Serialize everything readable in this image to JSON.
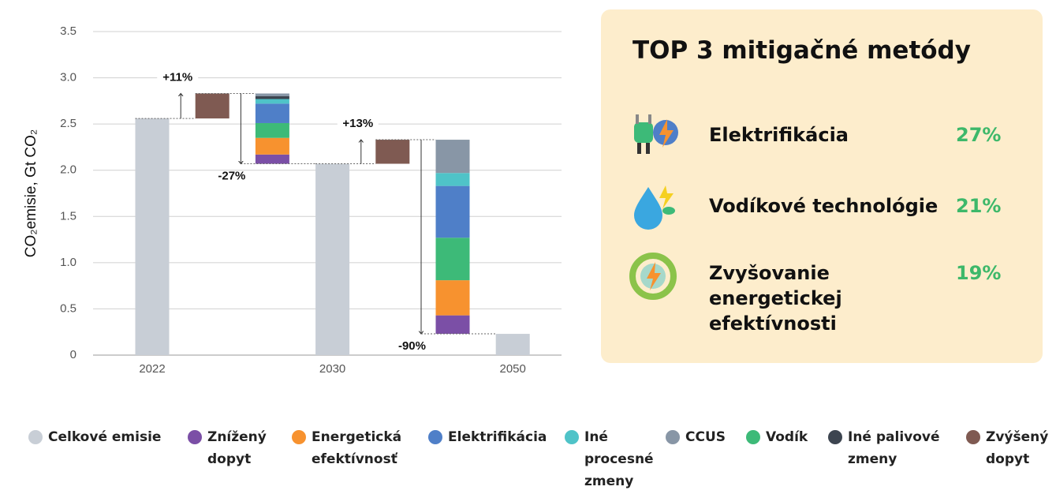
{
  "chart_data": {
    "type": "waterfall",
    "ylabel": "CO₂emisie, Gt CO₂",
    "categories": [
      "2022",
      null,
      null,
      "2030",
      null,
      null,
      "2050"
    ],
    "series": [
      {
        "name": "Celkové emisie",
        "color": "#c8ced6",
        "values": [
          2.56,
          null,
          null,
          2.07,
          null,
          null,
          0.23
        ]
      },
      {
        "name": "Znížený dopyt",
        "color": "#7b4fa6",
        "values": [
          null,
          null,
          0.1,
          null,
          null,
          0.2,
          null
        ]
      },
      {
        "name": "Energetická efektívnosť",
        "color": "#f7922f",
        "values": [
          null,
          null,
          0.18,
          null,
          null,
          0.38,
          null
        ]
      },
      {
        "name": "Elektrifikácia",
        "color": "#4f7fc8",
        "values": [
          null,
          null,
          0.21,
          null,
          null,
          0.56,
          null
        ]
      },
      {
        "name": "Iné procesné zmeny",
        "color": "#4fc3c8",
        "values": [
          null,
          null,
          0.05,
          null,
          null,
          0.14,
          null
        ]
      },
      {
        "name": "CCUS",
        "color": "#8896a6",
        "values": [
          null,
          null,
          0.03,
          null,
          null,
          0.36,
          null
        ]
      },
      {
        "name": "Vodík",
        "color": "#3dba78",
        "values": [
          null,
          null,
          0.16,
          null,
          null,
          0.46,
          null
        ]
      },
      {
        "name": "Iné palivové zmeny",
        "color": "#3d4550",
        "values": [
          null,
          null,
          0.03,
          null,
          null,
          null,
          null
        ]
      },
      {
        "name": "Zvýšený dopyt",
        "color": "#7f5a52",
        "values": [
          null,
          0.27,
          null,
          null,
          0.26,
          null,
          null
        ]
      }
    ],
    "annotations": [
      "+11%",
      "-27%",
      "+13%",
      "-90%"
    ],
    "ylim": [
      0,
      3.5
    ],
    "yticks": [
      0,
      0.5,
      {
        "value": 1,
        "label": "1.0"
      },
      1.5,
      {
        "value": 2,
        "label": "2.0"
      },
      2.5,
      {
        "value": 3,
        "label": "3.0"
      },
      3.5
    ],
    "grid": true
  },
  "panel": {
    "title": "TOP 3 mitigačné metódy",
    "items": [
      {
        "name": "Elektrifikácia",
        "value": "27%"
      },
      {
        "name": "Vodíkové technológie",
        "value": "21%"
      },
      {
        "name": "Zvyšovanie energetickej efektívnosti",
        "value": "19%"
      }
    ]
  }
}
